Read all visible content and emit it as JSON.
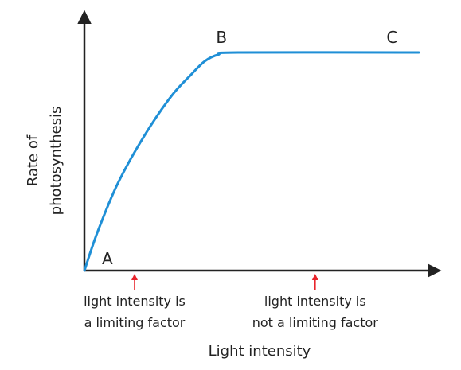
{
  "chart_data": {
    "type": "line",
    "title": "",
    "xlabel": "Light intensity",
    "ylabel": [
      "Rate of",
      "photosynthesis"
    ],
    "series": [
      {
        "x": [
          0,
          0.04,
          0.1,
          0.18,
          0.26,
          0.32,
          0.36,
          0.4,
          0.46,
          1.0
        ],
        "y": [
          0,
          0.18,
          0.4,
          0.62,
          0.8,
          0.9,
          0.96,
          0.99,
          1.0,
          1.0
        ],
        "color": "#1f8fd6"
      }
    ],
    "xlim": [
      0,
      1.0
    ],
    "ylim": [
      0,
      1.0
    ],
    "grid": false,
    "point_labels": [
      {
        "text": "A",
        "x": 0.0,
        "y": 0.0
      },
      {
        "text": "B",
        "x": 0.41,
        "y": 1.0
      },
      {
        "text": "C",
        "x": 0.92,
        "y": 1.0
      }
    ],
    "annotations": [
      {
        "x": 0.15,
        "lines": [
          "light intensity is",
          "a limiting factor"
        ],
        "arrow_color": "#e8242c"
      },
      {
        "x": 0.69,
        "lines": [
          "light intensity is",
          "not a limiting factor"
        ],
        "arrow_color": "#e8242c"
      }
    ]
  }
}
